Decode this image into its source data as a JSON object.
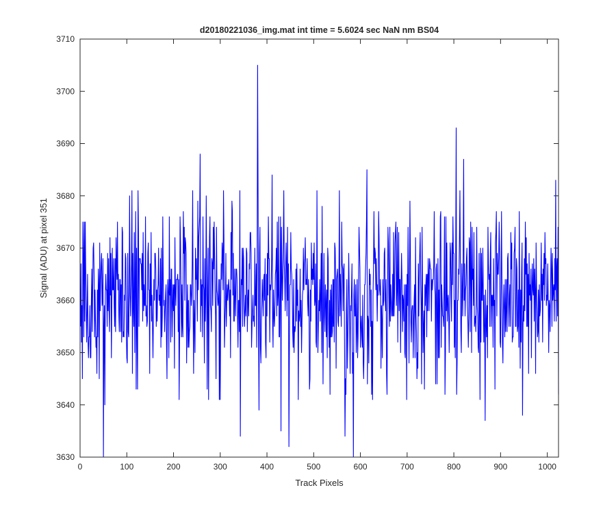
{
  "chart_data": {
    "type": "line",
    "title": "d20180221036_img.mat int time = 5.6024 sec  NaN nm BS04",
    "xlabel": "Track Pixels",
    "ylabel": "Signal (ADU) at pixel 351",
    "xlim": [
      0,
      1024
    ],
    "ylim": [
      3630,
      3710
    ],
    "xticks": [
      0,
      100,
      200,
      300,
      400,
      500,
      600,
      700,
      800,
      900,
      1000
    ],
    "yticks": [
      3630,
      3640,
      3650,
      3660,
      3670,
      3680,
      3690,
      3700,
      3710
    ],
    "grid": false,
    "series": [
      {
        "color": "#0000ff",
        "x_start": 1,
        "x_step": 1,
        "point_count": 1024,
        "noise_mean": 3661,
        "noise_sd": 8,
        "notable_points": [
          {
            "x": 50,
            "y": 3630
          },
          {
            "x": 53,
            "y": 3640
          },
          {
            "x": 257,
            "y": 3688
          },
          {
            "x": 343,
            "y": 3634
          },
          {
            "x": 380,
            "y": 3705
          },
          {
            "x": 383,
            "y": 3639
          },
          {
            "x": 411,
            "y": 3684
          },
          {
            "x": 430,
            "y": 3635
          },
          {
            "x": 447,
            "y": 3632
          },
          {
            "x": 567,
            "y": 3634
          },
          {
            "x": 585,
            "y": 3630
          },
          {
            "x": 614,
            "y": 3685
          },
          {
            "x": 805,
            "y": 3693
          },
          {
            "x": 821,
            "y": 3687
          },
          {
            "x": 867,
            "y": 3637
          },
          {
            "x": 947,
            "y": 3638
          },
          {
            "x": 1018,
            "y": 3683
          },
          {
            "x": 1024,
            "y": 3642
          }
        ]
      }
    ]
  }
}
